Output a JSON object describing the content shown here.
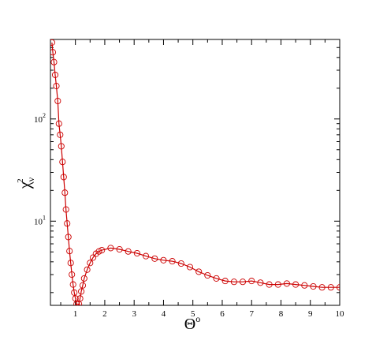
{
  "chart_data": {
    "type": "line",
    "xlabel": "Θ",
    "xlabel_superscript": "o",
    "ylabel": "χ",
    "ylabel_superscript": "2",
    "ylabel_subscript": "ν",
    "x_scale": "linear",
    "y_scale": "log",
    "xlim": [
      0.15,
      10
    ],
    "ylim": [
      1.5,
      600
    ],
    "x_ticks": [
      1,
      2,
      3,
      4,
      5,
      6,
      7,
      8,
      9,
      10
    ],
    "x_tick_labels": [
      "1",
      "2",
      "3",
      "4",
      "5",
      "6",
      "7",
      "8",
      "9",
      "10"
    ],
    "y_ticks": [
      10,
      100
    ],
    "y_tick_labels": [
      {
        "base": "10",
        "exp": "1"
      },
      {
        "base": "10",
        "exp": "2"
      }
    ],
    "grid": false,
    "line_color": "#cc0000",
    "marker_color": "#cc0000",
    "marker": "open-circle",
    "series": [
      {
        "x": [
          0.2,
          0.23,
          0.27,
          0.31,
          0.35,
          0.4,
          0.44,
          0.48,
          0.52,
          0.56,
          0.6,
          0.64,
          0.68,
          0.72,
          0.76,
          0.8,
          0.84,
          0.88,
          0.92,
          0.96,
          1.0,
          1.04,
          1.08,
          1.12,
          1.16,
          1.2,
          1.25,
          1.3,
          1.4,
          1.5,
          1.6,
          1.7,
          1.8,
          1.9,
          2.2,
          2.5,
          2.8,
          3.1,
          3.4,
          3.7,
          4.0,
          4.3,
          4.6,
          4.9,
          5.2,
          5.5,
          5.8,
          6.1,
          6.4,
          6.7,
          7.0,
          7.3,
          7.6,
          7.9,
          8.2,
          8.5,
          8.8,
          9.1,
          9.4,
          9.7,
          10.0
        ],
        "y": [
          560,
          450,
          360,
          270,
          210,
          150,
          90,
          70,
          54,
          38,
          27,
          19,
          13,
          9.5,
          7.0,
          5.1,
          3.9,
          3.0,
          2.4,
          2.0,
          1.75,
          1.55,
          1.45,
          1.55,
          1.75,
          2.05,
          2.35,
          2.75,
          3.35,
          3.9,
          4.4,
          4.8,
          5.05,
          5.2,
          5.45,
          5.3,
          5.05,
          4.85,
          4.55,
          4.3,
          4.15,
          4.05,
          3.85,
          3.55,
          3.2,
          2.95,
          2.75,
          2.6,
          2.55,
          2.55,
          2.6,
          2.5,
          2.4,
          2.4,
          2.45,
          2.4,
          2.35,
          2.3,
          2.25,
          2.25,
          2.25
        ]
      }
    ]
  }
}
